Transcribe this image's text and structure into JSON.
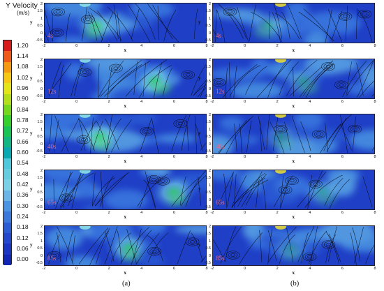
{
  "legend": {
    "title": "Y Velocity",
    "unit": "(m/s)",
    "labels": [
      "1.20",
      "1.14",
      "1.08",
      "1.02",
      "0.96",
      "0.90",
      "0.84",
      "0.78",
      "0.72",
      "0.66",
      "0.60",
      "0.54",
      "0.48",
      "0.42",
      "0.36",
      "0.30",
      "0.24",
      "0.18",
      "0.12",
      "0.06",
      "0.00"
    ],
    "colors": [
      "#d81c1c",
      "#ef5a18",
      "#f39a12",
      "#f6c814",
      "#e4e41a",
      "#b3de1c",
      "#76d81e",
      "#36d02c",
      "#1ac454",
      "#12b682",
      "#0aa8b0",
      "#4fc8dc",
      "#66cce0",
      "#7ad0e6",
      "#6ab4e6",
      "#4a94e2",
      "#3a78dc",
      "#2c5cd4",
      "#2448cc",
      "#1a36c0",
      "#1226b4"
    ]
  },
  "axes": {
    "x_label": "x",
    "y_label": "y",
    "x_ticks": [
      "-2",
      "0",
      "2",
      "4",
      "6",
      "8"
    ],
    "y_ticks": [
      "2",
      "1.5",
      "1",
      "0.5",
      "0",
      "-0.5"
    ]
  },
  "columns": [
    {
      "caption": "(a)",
      "panels": [
        {
          "time": "4s",
          "plume_x": 1.2,
          "plume_tilt": -0.5,
          "plume_strength": 0.7
        },
        {
          "time": "12s",
          "plume_x": 4.8,
          "plume_tilt": 1.3,
          "plume_strength": 0.8
        },
        {
          "time": "40s",
          "plume_x": 1.4,
          "plume_tilt": 0.3,
          "plume_strength": 0.78
        },
        {
          "time": "65s",
          "plume_x": 6.0,
          "plume_tilt": 0.6,
          "plume_strength": 0.8
        },
        {
          "time": "85s",
          "plume_x": 3.2,
          "plume_tilt": 0.4,
          "plume_strength": 0.72
        }
      ]
    },
    {
      "caption": "(b)",
      "panels": [
        {
          "time": "4s",
          "plume_x": 1.4,
          "plume_tilt": -0.7,
          "plume_strength": 0.45
        },
        {
          "time": "12s",
          "plume_x": 3.6,
          "plume_tilt": 1.0,
          "plume_strength": 0.45
        },
        {
          "time": "40s",
          "plume_x": 2.2,
          "plume_tilt": 0.5,
          "plume_strength": 0.4
        },
        {
          "time": "65s",
          "plume_x": 4.8,
          "plume_tilt": 0.8,
          "plume_strength": 0.4
        },
        {
          "time": "85s",
          "plume_x": 2.8,
          "plume_tilt": 0.3,
          "plume_strength": 0.35
        }
      ]
    }
  ]
}
